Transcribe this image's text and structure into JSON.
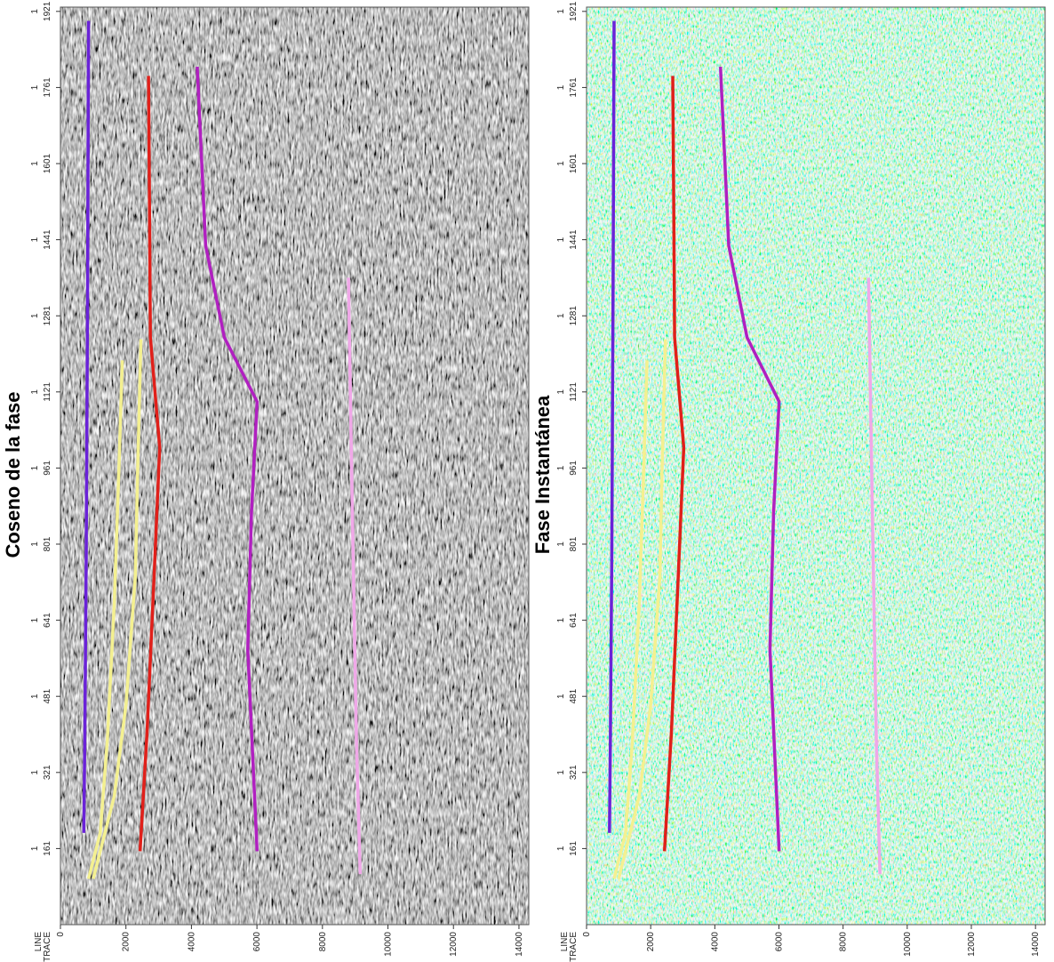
{
  "chart_data": [
    {
      "type": "seismic",
      "title": "Coseno de la fase",
      "palette": "gray",
      "x_axis_labels": [
        "LINE",
        "TRACE"
      ],
      "line_number": 1,
      "xlim": [
        0,
        14300
      ],
      "xticks": [
        0,
        2000,
        4000,
        6000,
        8000,
        10000,
        12000,
        14000
      ],
      "ylim": [
        1,
        1930
      ],
      "yticks": [
        161,
        321,
        481,
        641,
        801,
        961,
        1121,
        1281,
        1441,
        1601,
        1761,
        1921
      ]
    },
    {
      "type": "seismic",
      "title": "Fase Instantánea",
      "palette": "color",
      "x_axis_labels": [
        "LINE",
        "TRACE"
      ],
      "line_number": 1,
      "xlim": [
        0,
        14300
      ],
      "xticks": [
        0,
        2000,
        4000,
        6000,
        8000,
        10000,
        12000,
        14000
      ],
      "ylim": [
        1,
        1930
      ],
      "yticks": [
        161,
        321,
        481,
        641,
        801,
        961,
        1121,
        1281,
        1441,
        1601,
        1761,
        1921
      ]
    }
  ]
}
